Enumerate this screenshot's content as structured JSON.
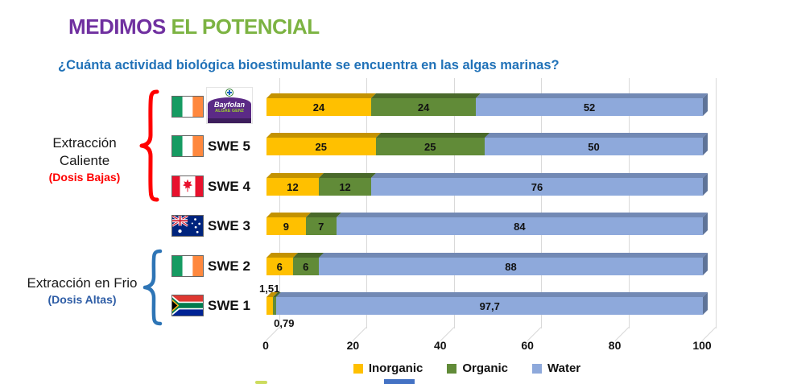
{
  "title": {
    "part1": "MEDIMOS",
    "part2": " EL POTENCIAL"
  },
  "title_colors": {
    "part1": "#7030A0",
    "part2": "#7CB342"
  },
  "subtitle": "¿Cuánta actividad biológica bioestimulante se encuentra en las algas marinas?",
  "subtitle_color": "#2172B8",
  "annotations": {
    "hot": {
      "line1": "Extracción",
      "line2": "Caliente",
      "note": "(Dosis Bajas)",
      "note_color": "#FF0000",
      "brace_color": "#FF0000",
      "rows_covered": [
        "Bayfolan",
        "SWE 5",
        "SWE 4"
      ]
    },
    "cold": {
      "line1": "Extracción en Frio",
      "note": "(Dosis Altas)",
      "note_color": "#2E5DA6",
      "brace_color": "#2E75B6",
      "rows_covered": [
        "SWE 2",
        "SWE 1"
      ]
    }
  },
  "chart_data": {
    "type": "bar",
    "orientation": "horizontal",
    "stacked": true,
    "effect": "3d",
    "categories": [
      {
        "flag": "ireland",
        "logo": {
          "brand": "Bayfolan",
          "sub": "ALGAE GEN2"
        }
      },
      {
        "flag": "ireland",
        "label": "SWE 5"
      },
      {
        "flag": "canada",
        "label": "SWE 4"
      },
      {
        "flag": "australia",
        "label": "SWE 3"
      },
      {
        "flag": "ireland",
        "label": "SWE 2"
      },
      {
        "flag": "south-africa",
        "label": "SWE 1"
      }
    ],
    "series": [
      {
        "name": "Inorganic",
        "color": "#FFC000",
        "top_color": "#C39200",
        "values": [
          24,
          25,
          12,
          9,
          6,
          1.51
        ],
        "labels": [
          "24",
          "25",
          "12",
          "9",
          "6",
          "1,51"
        ]
      },
      {
        "name": "Organic",
        "color": "#618B38",
        "top_color": "#49692A",
        "values": [
          24,
          25,
          12,
          7,
          6,
          0.79
        ],
        "labels": [
          "24",
          "25",
          "12",
          "7",
          "6",
          "0,79"
        ]
      },
      {
        "name": "Water",
        "color": "#8EA9DB",
        "top_color": "#7289B4",
        "cap_color": "#5E7398",
        "values": [
          52,
          50,
          76,
          84,
          88,
          97.7
        ],
        "labels": [
          "52",
          "50",
          "76",
          "84",
          "88",
          "97,7"
        ]
      }
    ],
    "x_ticks": [
      "0",
      "20",
      "40",
      "60",
      "80",
      "100"
    ],
    "xlim": [
      0,
      100
    ],
    "grid": "vertical",
    "legend": [
      "Inorganic",
      "Organic",
      "Water"
    ],
    "legend_position": "bottom"
  }
}
